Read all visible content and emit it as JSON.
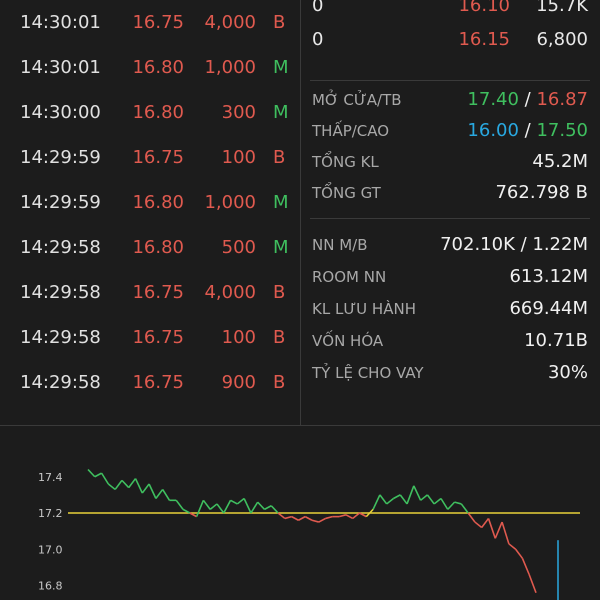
{
  "trades": [
    {
      "time": "14:30:01",
      "price": "16.75",
      "volume": "4,000",
      "side": "B"
    },
    {
      "time": "14:30:01",
      "price": "16.80",
      "volume": "1,000",
      "side": "M"
    },
    {
      "time": "14:30:00",
      "price": "16.80",
      "volume": "300",
      "side": "M"
    },
    {
      "time": "14:29:59",
      "price": "16.75",
      "volume": "100",
      "side": "B"
    },
    {
      "time": "14:29:59",
      "price": "16.80",
      "volume": "1,000",
      "side": "M"
    },
    {
      "time": "14:29:58",
      "price": "16.80",
      "volume": "500",
      "side": "M"
    },
    {
      "time": "14:29:58",
      "price": "16.75",
      "volume": "4,000",
      "side": "B"
    },
    {
      "time": "14:29:58",
      "price": "16.75",
      "volume": "100",
      "side": "B"
    },
    {
      "time": "14:29:58",
      "price": "16.75",
      "volume": "900",
      "side": "B"
    }
  ],
  "order_book": [
    {
      "left": "0",
      "price": "16.10",
      "volume": "15.7K"
    },
    {
      "left": "0",
      "price": "16.15",
      "volume": "6,800"
    }
  ],
  "stats": {
    "open_avg": {
      "label": "MỞ CỬA/TB",
      "open": "17.40",
      "sep": " / ",
      "avg": "16.87"
    },
    "low_high": {
      "label": "THẤP/CAO",
      "low": "16.00",
      "sep": " / ",
      "high": "17.50"
    },
    "total_volume": {
      "label": "TỔNG KL",
      "value": "45.2M"
    },
    "total_value": {
      "label": "TỔNG GT",
      "value": "762.798 B"
    },
    "foreign_buy_sell": {
      "label": "NN M/B",
      "value": "702.10K / 1.22M"
    },
    "foreign_room": {
      "label": "ROOM NN",
      "value": "613.12M"
    },
    "outstanding_shares": {
      "label": "KL LƯU HÀNH",
      "value": "669.44M"
    },
    "market_cap": {
      "label": "VỐN HÓA",
      "value": "10.71B"
    },
    "margin_ratio": {
      "label": "TỶ LỆ CHO VAY",
      "value": "30%"
    }
  },
  "colors": {
    "up": "#3fbf5f",
    "down": "#e05a4f",
    "reference": "#e8d23a",
    "floor": "#29a8e0",
    "background": "#1c1c1c"
  },
  "chart_data": {
    "type": "line",
    "y_ticks": [
      "17.4",
      "17.2",
      "17.0",
      "16.8"
    ],
    "ylim": [
      16.72,
      17.52
    ],
    "reference_price": 17.2,
    "x": [
      0,
      1,
      2,
      3,
      4,
      5,
      6,
      7,
      8,
      9,
      10,
      11,
      12,
      13,
      14,
      15,
      16,
      17,
      18,
      19,
      20,
      21,
      22,
      23,
      24,
      25,
      26,
      27,
      28,
      29,
      30,
      31,
      32,
      33,
      34,
      35,
      36,
      37,
      38,
      39,
      40,
      41,
      42,
      43,
      44,
      45,
      46,
      47,
      48,
      49,
      50,
      51,
      52,
      53,
      54,
      55,
      56,
      57,
      58,
      59,
      60,
      61,
      62,
      63,
      64,
      65,
      66
    ],
    "series": [
      {
        "values": [
          17.44,
          17.4,
          17.42,
          17.36,
          17.33,
          17.38,
          17.34,
          17.39,
          17.31,
          17.36,
          17.28,
          17.33,
          17.27,
          17.27,
          17.22,
          17.2,
          17.18,
          17.27,
          17.22,
          17.25,
          17.2,
          17.27,
          17.25,
          17.28,
          17.2,
          17.26,
          17.22,
          17.24,
          17.2,
          17.17,
          17.18,
          17.16,
          17.18,
          17.16,
          17.15,
          17.17,
          17.18,
          17.18,
          17.19,
          17.17,
          17.2,
          17.18,
          17.22,
          17.3,
          17.25,
          17.28,
          17.3,
          17.25,
          17.35,
          17.27,
          17.3,
          17.25,
          17.28,
          17.22,
          17.26,
          17.25,
          17.2,
          17.15,
          17.12,
          17.17,
          17.06,
          17.15,
          17.03,
          17.0,
          16.95,
          16.86,
          16.76
        ]
      }
    ],
    "volume_bar_value": 17.05
  }
}
